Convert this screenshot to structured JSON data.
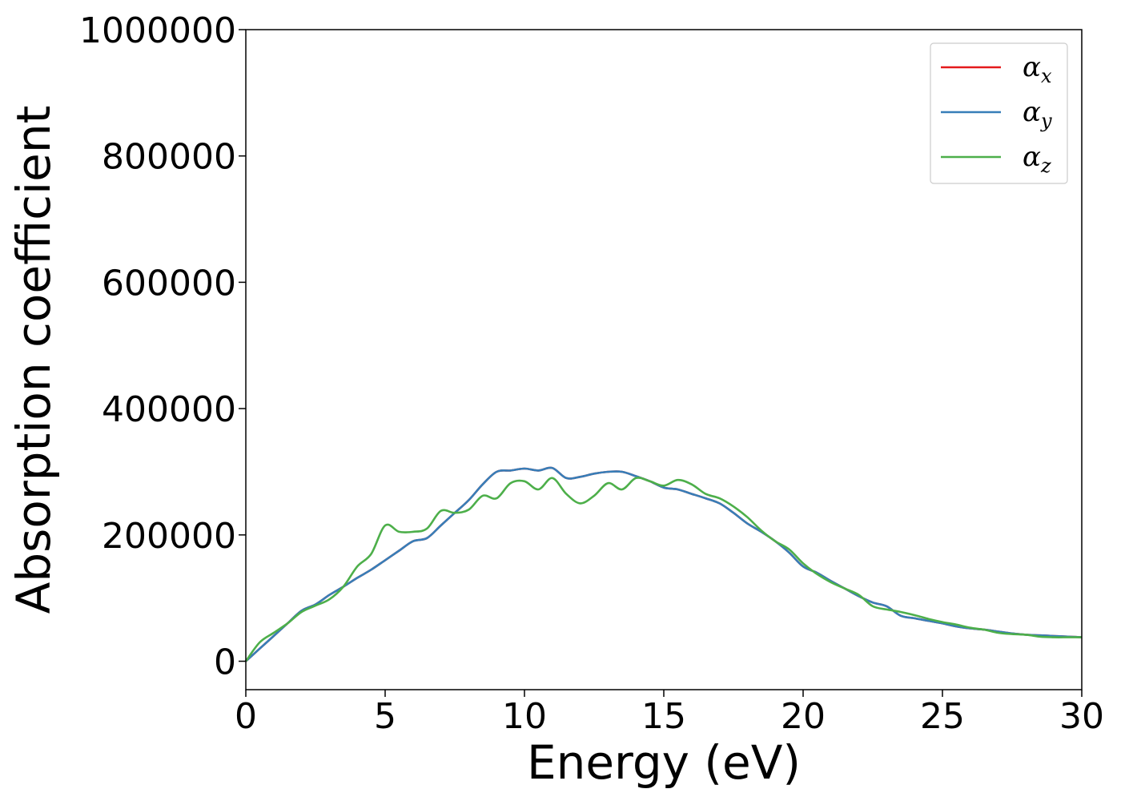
{
  "chart_data": {
    "type": "line",
    "xlabel": "Energy (eV)",
    "ylabel": "Absorption coefficient",
    "xlim": [
      0,
      30
    ],
    "ylim": [
      -45000,
      1000000
    ],
    "xticks": [
      0,
      5,
      10,
      15,
      20,
      25,
      30
    ],
    "xtick_labels": [
      "0",
      "5",
      "10",
      "15",
      "20",
      "25",
      "30"
    ],
    "yticks": [
      0,
      200000,
      400000,
      600000,
      800000,
      1000000
    ],
    "ytick_labels": [
      "0",
      "200000",
      "400000",
      "600000",
      "800000",
      "1000000"
    ],
    "grid": false,
    "legend_position": "top-right",
    "x": [
      0,
      0.5,
      1,
      1.5,
      2,
      2.5,
      3,
      3.5,
      4,
      4.5,
      5,
      5.5,
      6,
      6.5,
      7,
      7.5,
      8,
      8.5,
      9,
      9.5,
      10,
      10.5,
      11,
      11.5,
      12,
      12.5,
      13,
      13.5,
      14,
      14.5,
      15,
      15.5,
      16,
      16.5,
      17,
      17.5,
      18,
      18.5,
      19,
      19.5,
      20,
      20.5,
      21,
      21.5,
      22,
      22.5,
      23,
      23.5,
      24,
      24.5,
      25,
      25.5,
      26,
      26.5,
      27,
      27.5,
      28,
      28.5,
      29,
      29.5,
      30
    ],
    "series": [
      {
        "name": "α",
        "sub": "x",
        "color": "#e41a1c",
        "values": [
          0,
          20000,
          40000,
          60000,
          80000,
          90000,
          105000,
          118000,
          132000,
          145000,
          160000,
          175000,
          190000,
          195000,
          215000,
          235000,
          255000,
          280000,
          300000,
          302000,
          305000,
          302000,
          306000,
          290000,
          292000,
          297000,
          300000,
          300000,
          293000,
          285000,
          275000,
          272000,
          265000,
          258000,
          250000,
          235000,
          218000,
          205000,
          190000,
          172000,
          150000,
          140000,
          127000,
          115000,
          103000,
          93000,
          87000,
          72000,
          68000,
          64000,
          60000,
          55000,
          52000,
          50000,
          47000,
          44000,
          42000,
          41000,
          40000,
          39000,
          38000
        ]
      },
      {
        "name": "α",
        "sub": "y",
        "color": "#377eb8",
        "values": [
          0,
          20000,
          40000,
          60000,
          80000,
          90000,
          105000,
          118000,
          132000,
          145000,
          160000,
          175000,
          190000,
          195000,
          215000,
          235000,
          255000,
          280000,
          300000,
          302000,
          305000,
          302000,
          306000,
          290000,
          292000,
          297000,
          300000,
          300000,
          293000,
          285000,
          275000,
          272000,
          265000,
          258000,
          250000,
          235000,
          218000,
          205000,
          190000,
          172000,
          150000,
          140000,
          127000,
          115000,
          103000,
          93000,
          87000,
          72000,
          68000,
          64000,
          60000,
          55000,
          52000,
          50000,
          47000,
          44000,
          42000,
          41000,
          40000,
          39000,
          38000
        ]
      },
      {
        "name": "α",
        "sub": "z",
        "color": "#4daf4a",
        "values": [
          0,
          30000,
          45000,
          60000,
          78000,
          88000,
          98000,
          118000,
          150000,
          170000,
          215000,
          205000,
          205000,
          210000,
          238000,
          235000,
          240000,
          262000,
          258000,
          282000,
          285000,
          272000,
          290000,
          265000,
          250000,
          262000,
          282000,
          272000,
          290000,
          285000,
          278000,
          287000,
          280000,
          265000,
          258000,
          245000,
          228000,
          207000,
          190000,
          177000,
          155000,
          138000,
          125000,
          115000,
          105000,
          87000,
          82000,
          78000,
          73000,
          67000,
          62000,
          58000,
          53000,
          50000,
          45000,
          43000,
          42000,
          39000,
          38000,
          38000,
          38000
        ]
      }
    ]
  }
}
